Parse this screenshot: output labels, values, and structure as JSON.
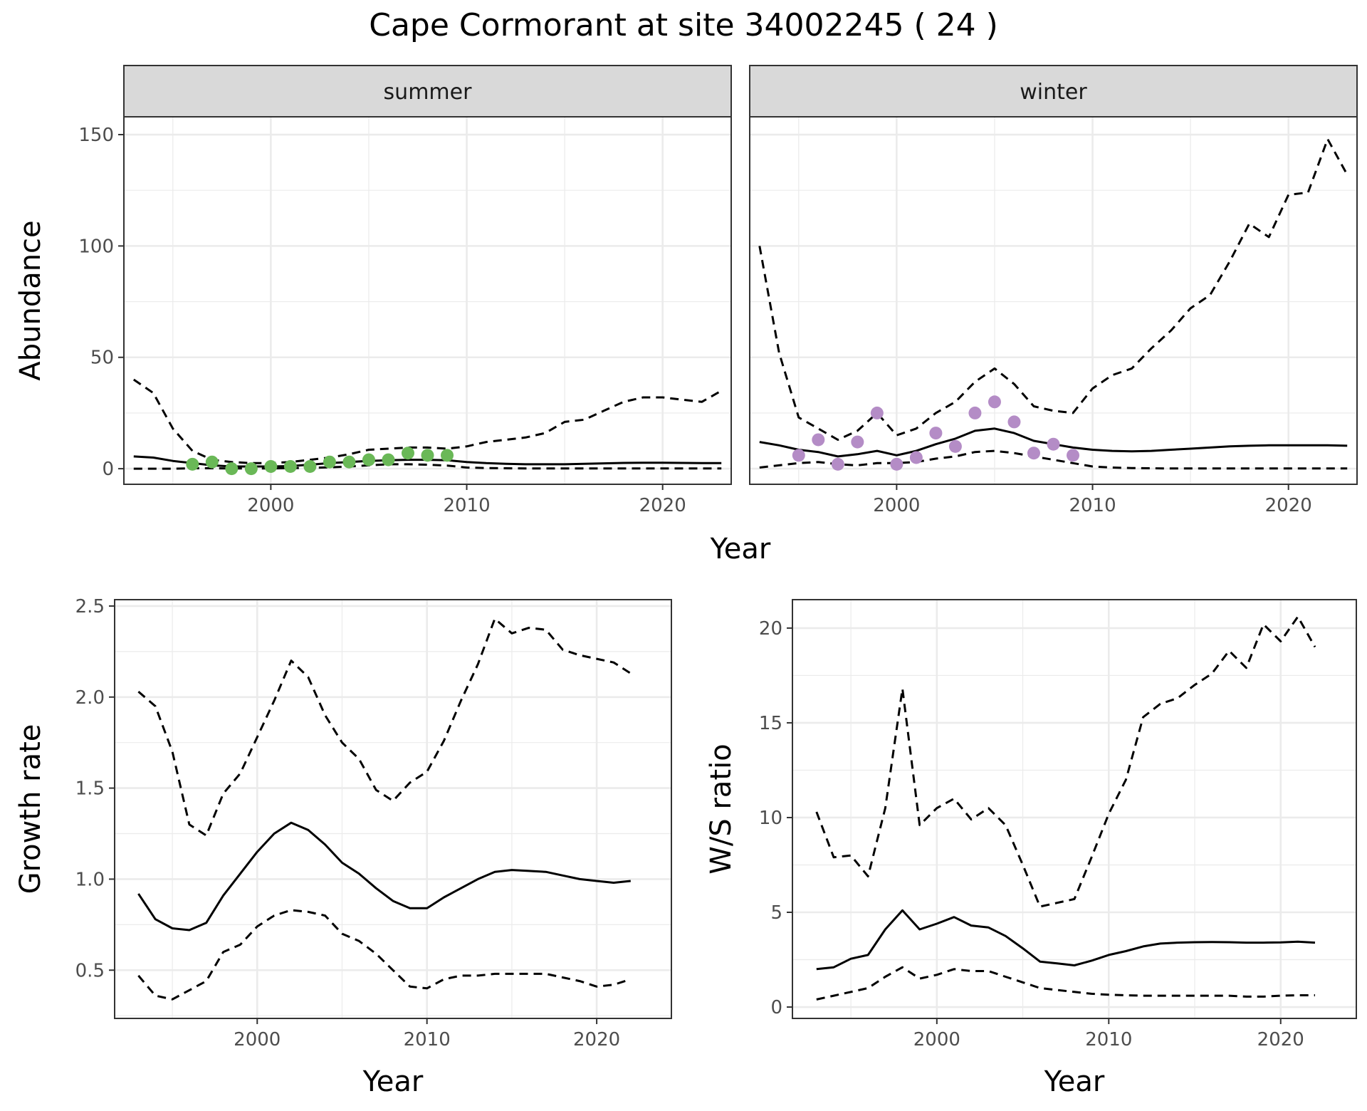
{
  "figure": {
    "title": "Cape Cormorant at site 34002245 ( 24 )",
    "colors": {
      "summer_points": "#6ab857",
      "winter_points": "#b48cc6",
      "strip_fill": "#d9d9d9",
      "grid": "#ebebeb",
      "line": "#000000"
    }
  },
  "chart_data": [
    {
      "type": "line",
      "panel": "summer",
      "strip": "summer",
      "xlabel": "",
      "ylabel": "Abundance",
      "xlim": [
        1992.5,
        2023.5
      ],
      "ylim": [
        -7,
        158
      ],
      "xticks": [
        2000,
        2010,
        2020
      ],
      "yticks": [
        0,
        50,
        100,
        150
      ],
      "show_y_ticks": true,
      "x": [
        1993,
        1994,
        1995,
        1996,
        1997,
        1998,
        1999,
        2000,
        2001,
        2002,
        2003,
        2004,
        2005,
        2006,
        2007,
        2008,
        2009,
        2010,
        2011,
        2012,
        2013,
        2014,
        2015,
        2016,
        2017,
        2018,
        2019,
        2020,
        2021,
        2022,
        2023
      ],
      "series": [
        {
          "role": "mean",
          "style": "solid",
          "values": [
            5.5,
            5,
            3.5,
            2.5,
            1.5,
            1,
            1,
            1,
            1.2,
            1.8,
            2.5,
            3,
            3.5,
            3.8,
            4,
            4,
            3.8,
            3,
            2.5,
            2.2,
            2,
            2,
            2,
            2.2,
            2.4,
            2.6,
            2.7,
            2.7,
            2.6,
            2.5,
            2.5
          ]
        },
        {
          "role": "upper",
          "style": "dashed",
          "values": [
            40,
            34,
            18,
            8,
            4,
            3,
            2.5,
            2.5,
            3,
            4,
            5,
            6.5,
            8.5,
            9,
            9.5,
            9.5,
            9,
            10,
            12,
            13,
            14,
            16,
            21,
            22,
            26,
            30,
            32,
            32,
            31,
            30,
            35
          ]
        },
        {
          "role": "lower",
          "style": "dashed",
          "values": [
            0,
            0,
            0,
            0.2,
            0.2,
            0.1,
            0.1,
            0.1,
            0.3,
            0.4,
            0.6,
            1,
            1.5,
            2,
            2,
            1.8,
            1.4,
            0.5,
            0.3,
            0.2,
            0.1,
            0.1,
            0.1,
            0.1,
            0.1,
            0.1,
            0.1,
            0.1,
            0.1,
            0.1,
            0.1
          ]
        }
      ],
      "points": {
        "x": [
          1996,
          1997,
          1998,
          1999,
          2000,
          2001,
          2002,
          2003,
          2004,
          2005,
          2006,
          2007,
          2008,
          2009
        ],
        "y": [
          2,
          3,
          0,
          0,
          1,
          1,
          1,
          3,
          3,
          4,
          4,
          7,
          6,
          6
        ]
      }
    },
    {
      "type": "line",
      "panel": "winter",
      "strip": "winter",
      "xlabel": "",
      "ylabel": "",
      "xlim": [
        1992.5,
        2023.5
      ],
      "ylim": [
        -7,
        158
      ],
      "xticks": [
        2000,
        2010,
        2020
      ],
      "yticks": [
        0,
        50,
        100,
        150
      ],
      "show_y_ticks": false,
      "x": [
        1993,
        1994,
        1995,
        1996,
        1997,
        1998,
        1999,
        2000,
        2001,
        2002,
        2003,
        2004,
        2005,
        2006,
        2007,
        2008,
        2009,
        2010,
        2011,
        2012,
        2013,
        2014,
        2015,
        2016,
        2017,
        2018,
        2019,
        2020,
        2021,
        2022,
        2023
      ],
      "series": [
        {
          "role": "mean",
          "style": "solid",
          "values": [
            12,
            10.5,
            8.5,
            7.5,
            5.5,
            6.5,
            8,
            6,
            8,
            11,
            13.5,
            17,
            18,
            16,
            12.5,
            11,
            9.5,
            8.5,
            8,
            7.8,
            8,
            8.5,
            9,
            9.5,
            10,
            10.3,
            10.5,
            10.5,
            10.5,
            10.5,
            10.3
          ]
        },
        {
          "role": "upper",
          "style": "dashed",
          "values": [
            100,
            52,
            23,
            18,
            13,
            17,
            25,
            15,
            18,
            25,
            30,
            39,
            45,
            38,
            28,
            26,
            25,
            36,
            42,
            45,
            54,
            62,
            72,
            78,
            93,
            110,
            104,
            123,
            124,
            148,
            132
          ]
        },
        {
          "role": "lower",
          "style": "dashed",
          "values": [
            0.5,
            1.5,
            2.5,
            3,
            2,
            1.5,
            2.5,
            2.5,
            3,
            4.5,
            5.5,
            7.5,
            8,
            7,
            5.5,
            4,
            2.5,
            1,
            0.5,
            0.3,
            0.2,
            0.1,
            0.1,
            0.1,
            0.1,
            0.1,
            0.1,
            0.1,
            0.1,
            0.1,
            0.1
          ]
        }
      ],
      "points": {
        "x": [
          1995,
          1996,
          1997,
          1998,
          1999,
          2000,
          2001,
          2002,
          2003,
          2004,
          2005,
          2006,
          2007,
          2008,
          2009
        ],
        "y": [
          6,
          13,
          2,
          12,
          25,
          2,
          5,
          16,
          10,
          25,
          30,
          21,
          7,
          11,
          6
        ]
      }
    },
    {
      "type": "line",
      "panel": "growth",
      "strip": "",
      "xlabel": "Year",
      "ylabel": "Growth rate",
      "xlim": [
        1991.6,
        2024.4
      ],
      "ylim": [
        0.235,
        2.535
      ],
      "xticks": [
        2000,
        2010,
        2020
      ],
      "yticks": [
        0.5,
        1.0,
        1.5,
        2.0,
        2.5
      ],
      "ytick_labels": [
        "0.5",
        "1.0",
        "1.5",
        "2.0",
        "2.5"
      ],
      "show_y_ticks": true,
      "x": [
        1993,
        1994,
        1995,
        1996,
        1997,
        1998,
        1999,
        2000,
        2001,
        2002,
        2003,
        2004,
        2005,
        2006,
        2007,
        2008,
        2009,
        2010,
        2011,
        2012,
        2013,
        2014,
        2015,
        2016,
        2017,
        2018,
        2019,
        2020,
        2021,
        2022
      ],
      "series": [
        {
          "role": "mean",
          "style": "solid",
          "values": [
            0.92,
            0.78,
            0.73,
            0.72,
            0.76,
            0.91,
            1.03,
            1.15,
            1.25,
            1.31,
            1.27,
            1.19,
            1.09,
            1.03,
            0.95,
            0.88,
            0.84,
            0.84,
            0.9,
            0.95,
            1.0,
            1.04,
            1.05,
            1.045,
            1.04,
            1.02,
            1.0,
            0.99,
            0.98,
            0.99
          ]
        },
        {
          "role": "upper",
          "style": "dashed",
          "values": [
            2.03,
            1.95,
            1.7,
            1.3,
            1.24,
            1.47,
            1.58,
            1.78,
            1.98,
            2.2,
            2.11,
            1.9,
            1.75,
            1.66,
            1.49,
            1.43,
            1.53,
            1.59,
            1.76,
            1.98,
            2.18,
            2.43,
            2.35,
            2.38,
            2.37,
            2.26,
            2.23,
            2.21,
            2.19,
            2.13
          ]
        },
        {
          "role": "lower",
          "style": "dashed",
          "values": [
            0.47,
            0.36,
            0.34,
            0.39,
            0.44,
            0.6,
            0.64,
            0.74,
            0.8,
            0.83,
            0.82,
            0.8,
            0.7,
            0.66,
            0.59,
            0.5,
            0.41,
            0.4,
            0.45,
            0.47,
            0.47,
            0.48,
            0.48,
            0.48,
            0.48,
            0.46,
            0.44,
            0.41,
            0.42,
            0.45
          ]
        }
      ]
    },
    {
      "type": "line",
      "panel": "ws_ratio",
      "strip": "",
      "xlabel": "Year",
      "ylabel": "W/S ratio",
      "xlim": [
        1991.6,
        2024.4
      ],
      "ylim": [
        -0.6,
        21.5
      ],
      "xticks": [
        2000,
        2010,
        2020
      ],
      "yticks": [
        0,
        5,
        10,
        15,
        20
      ],
      "show_y_ticks": true,
      "x": [
        1993,
        1994,
        1995,
        1996,
        1997,
        1998,
        1999,
        2000,
        2001,
        2002,
        2003,
        2004,
        2005,
        2006,
        2007,
        2008,
        2009,
        2010,
        2011,
        2012,
        2013,
        2014,
        2015,
        2016,
        2017,
        2018,
        2019,
        2020,
        2021,
        2022
      ],
      "series": [
        {
          "role": "mean",
          "style": "solid",
          "values": [
            2.0,
            2.1,
            2.55,
            2.75,
            4.1,
            5.1,
            4.1,
            4.4,
            4.75,
            4.3,
            4.2,
            3.75,
            3.1,
            2.4,
            2.3,
            2.2,
            2.45,
            2.75,
            2.95,
            3.2,
            3.35,
            3.4,
            3.42,
            3.43,
            3.42,
            3.4,
            3.4,
            3.41,
            3.45,
            3.4
          ]
        },
        {
          "role": "upper",
          "style": "dashed",
          "values": [
            10.3,
            7.9,
            8.0,
            6.9,
            10.5,
            16.8,
            9.6,
            10.5,
            11.0,
            9.9,
            10.5,
            9.6,
            7.5,
            5.3,
            5.5,
            5.7,
            7.9,
            10.2,
            12.0,
            15.3,
            16.0,
            16.3,
            17.0,
            17.6,
            18.8,
            17.9,
            20.2,
            19.3,
            20.6,
            19.0
          ]
        },
        {
          "role": "lower",
          "style": "dashed",
          "values": [
            0.4,
            0.6,
            0.8,
            1.0,
            1.6,
            2.1,
            1.5,
            1.7,
            2.0,
            1.9,
            1.9,
            1.6,
            1.3,
            1.0,
            0.9,
            0.8,
            0.7,
            0.65,
            0.62,
            0.6,
            0.6,
            0.6,
            0.6,
            0.6,
            0.6,
            0.55,
            0.55,
            0.6,
            0.62,
            0.62
          ]
        }
      ]
    }
  ]
}
